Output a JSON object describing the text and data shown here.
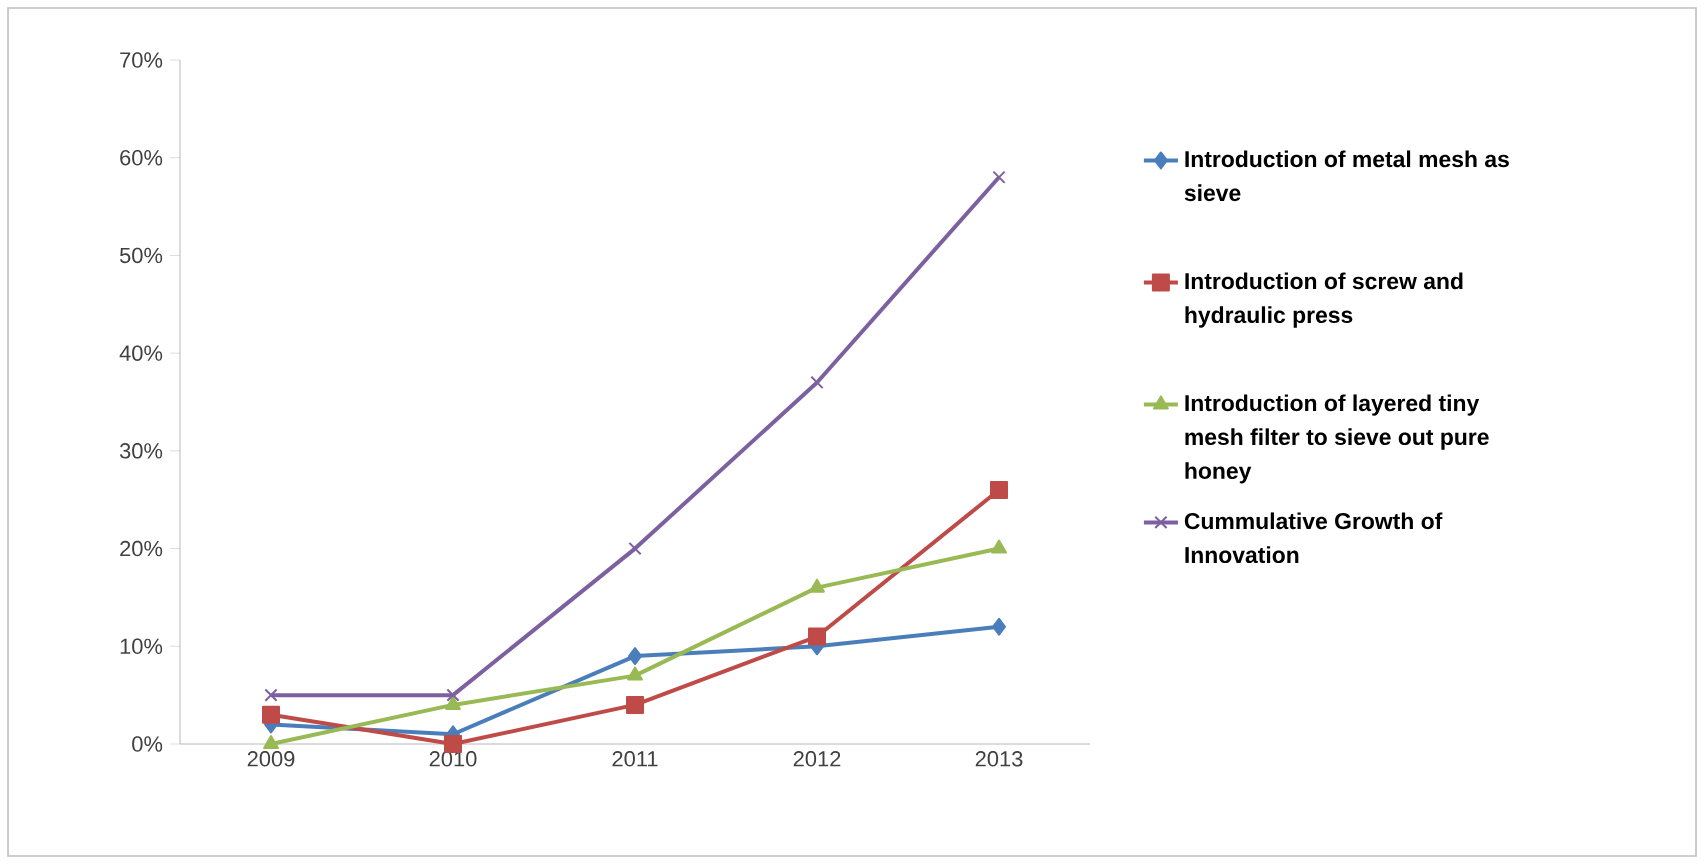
{
  "chart_data": {
    "type": "line",
    "categories": [
      "2009",
      "2010",
      "2011",
      "2012",
      "2013"
    ],
    "series": [
      {
        "name": "Introduction of metal mesh as sieve",
        "color": "#4a7ebb",
        "marker": "diamond",
        "values": [
          2,
          1,
          9,
          10,
          12
        ]
      },
      {
        "name": "Introduction of screw and hydraulic press",
        "color": "#be4b48",
        "marker": "square",
        "values": [
          3,
          0,
          4,
          11,
          26
        ]
      },
      {
        "name": "Introduction of layered tiny mesh filter to sieve out pure honey",
        "color": "#98b954",
        "marker": "triangle",
        "values": [
          0,
          4,
          7,
          16,
          20
        ]
      },
      {
        "name": "Cummulative Growth of Innovation",
        "color": "#7d60a0",
        "marker": "cross",
        "values": [
          5,
          5,
          20,
          37,
          58
        ]
      }
    ],
    "ylim": [
      0,
      70
    ],
    "yticks": [
      {
        "value": 0,
        "label": "0%"
      },
      {
        "value": 10,
        "label": "10%"
      },
      {
        "value": 20,
        "label": "20%"
      },
      {
        "value": 30,
        "label": "30%"
      },
      {
        "value": 40,
        "label": "40%"
      },
      {
        "value": 50,
        "label": "50%"
      },
      {
        "value": 60,
        "label": "60%"
      },
      {
        "value": 70,
        "label": "70%"
      }
    ],
    "legend": "right",
    "line_style": "solid"
  }
}
